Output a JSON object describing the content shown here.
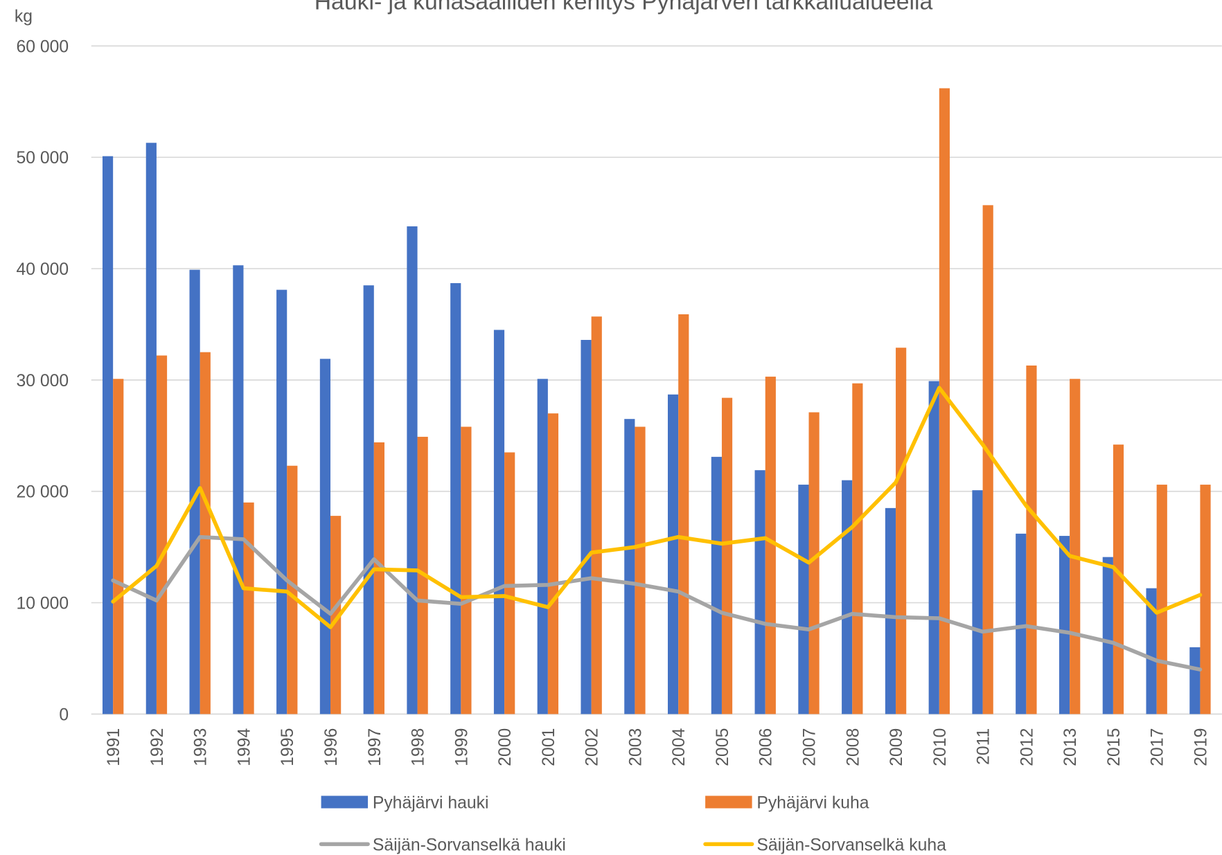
{
  "chart_data": {
    "type": "bar_line",
    "title": "Hauki- ja kuhasaaliiden kehitys Pyhäjärven tarkkailualueella",
    "y_unit": "kg",
    "categories": [
      "1991",
      "1992",
      "1993",
      "1994",
      "1995",
      "1996",
      "1997",
      "1998",
      "1999",
      "2000",
      "2001",
      "2002",
      "2003",
      "2004",
      "2005",
      "2006",
      "2007",
      "2008",
      "2009",
      "2010",
      "2011",
      "2012",
      "2013",
      "2015",
      "2017",
      "2019"
    ],
    "series": [
      {
        "name": "Pyhäjärvi hauki",
        "type": "bar",
        "color": "#4472c4",
        "values": [
          50100,
          51300,
          39900,
          40300,
          38100,
          31900,
          38500,
          43800,
          38700,
          34500,
          30100,
          33600,
          26500,
          28700,
          23100,
          21900,
          20600,
          21000,
          18500,
          29900,
          20100,
          16200,
          16000,
          14100,
          11300,
          6000
        ]
      },
      {
        "name": "Pyhäjärvi kuha",
        "type": "bar",
        "color": "#ed7d31",
        "values": [
          30100,
          32200,
          32500,
          19000,
          22300,
          17800,
          24400,
          24900,
          25800,
          23500,
          27000,
          35700,
          25800,
          35900,
          28400,
          30300,
          27100,
          29700,
          32900,
          56200,
          45700,
          31300,
          30100,
          24200,
          20600,
          20600
        ]
      },
      {
        "name": "Säijän-Sorvanselkä hauki",
        "type": "line",
        "color": "#a5a5a5",
        "values": [
          12000,
          10200,
          15900,
          15700,
          12000,
          9000,
          13900,
          10200,
          9900,
          11500,
          11600,
          12200,
          11700,
          11000,
          9100,
          8100,
          7600,
          9000,
          8700,
          8600,
          7400,
          7900,
          7300,
          6400,
          4800,
          4000
        ]
      },
      {
        "name": "Säijän-Sorvanselkä kuha",
        "type": "line",
        "color": "#ffc000",
        "values": [
          10100,
          13300,
          20300,
          11300,
          11000,
          7800,
          13000,
          12900,
          10500,
          10600,
          9600,
          14500,
          15000,
          15900,
          15300,
          15800,
          13600,
          16800,
          20800,
          29300,
          24200,
          18700,
          14200,
          13200,
          9100,
          10700
        ]
      }
    ],
    "ylim": [
      0,
      60000
    ],
    "yticks": [
      0,
      {
        "value": 10000,
        "label": "10 000"
      },
      {
        "value": 20000,
        "label": "20 000"
      },
      {
        "value": 30000,
        "label": "30 000"
      },
      {
        "value": 40000,
        "label": "40 000"
      },
      {
        "value": 50000,
        "label": "50 000"
      },
      {
        "value": 60000,
        "label": "60 000"
      }
    ],
    "grid": true,
    "legend": "bottom"
  }
}
